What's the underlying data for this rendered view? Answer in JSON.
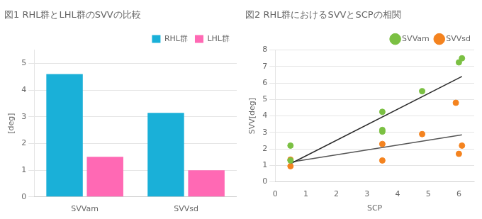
{
  "chart_data": [
    {
      "type": "bar",
      "title": "図1 RHL群とLHL群のSVVの比較",
      "ylabel": "[deg]",
      "categories": [
        "SVVam",
        "SVVsd"
      ],
      "series": [
        {
          "name": "RHL群",
          "color": "#1ab0d8",
          "values": [
            4.6,
            3.15
          ]
        },
        {
          "name": "LHL群",
          "color": "#ff69b4",
          "values": [
            1.5,
            1.0
          ]
        }
      ],
      "ylim": [
        0,
        5.5
      ],
      "yticks": [
        0,
        1,
        2,
        3,
        4,
        5
      ],
      "grid": true,
      "legend": "upper right"
    },
    {
      "type": "scatter",
      "title": "図2 RHL群におけるSVVとSCPの相関",
      "xlabel": "SCP",
      "ylabel": "SVV[deg]",
      "series": [
        {
          "name": "SVVam",
          "color": "#7bc043",
          "marker": "circle",
          "x": [
            0.5,
            0.5,
            3.5,
            3.5,
            3.5,
            4.8,
            6.0,
            6.1
          ],
          "values": [
            1.3,
            2.2,
            3.05,
            3.15,
            4.25,
            5.5,
            7.25,
            7.5
          ]
        },
        {
          "name": "SVVsd",
          "color": "#f4831f",
          "marker": "circle",
          "x": [
            0.5,
            0.5,
            3.5,
            3.5,
            4.8,
            5.9,
            6.0,
            6.1
          ],
          "values": [
            0.95,
            1.35,
            1.3,
            2.3,
            2.9,
            4.8,
            1.7,
            2.2
          ]
        },
        {
          "type": "line",
          "color": "#2a2a2a",
          "x": [
            0.5,
            6.1
          ],
          "values": [
            1.1,
            6.4
          ]
        },
        {
          "type": "line",
          "color": "#555555",
          "x": [
            0.5,
            6.1
          ],
          "values": [
            1.2,
            2.85
          ]
        }
      ],
      "xlim": [
        0,
        6.5
      ],
      "xticks": [
        0,
        1,
        2,
        3,
        4,
        5,
        6
      ],
      "ylim": [
        0,
        8
      ],
      "yticks": [
        0,
        1,
        2,
        3,
        4,
        5,
        6,
        7,
        8
      ],
      "grid": true,
      "legend": "upper right"
    }
  ]
}
